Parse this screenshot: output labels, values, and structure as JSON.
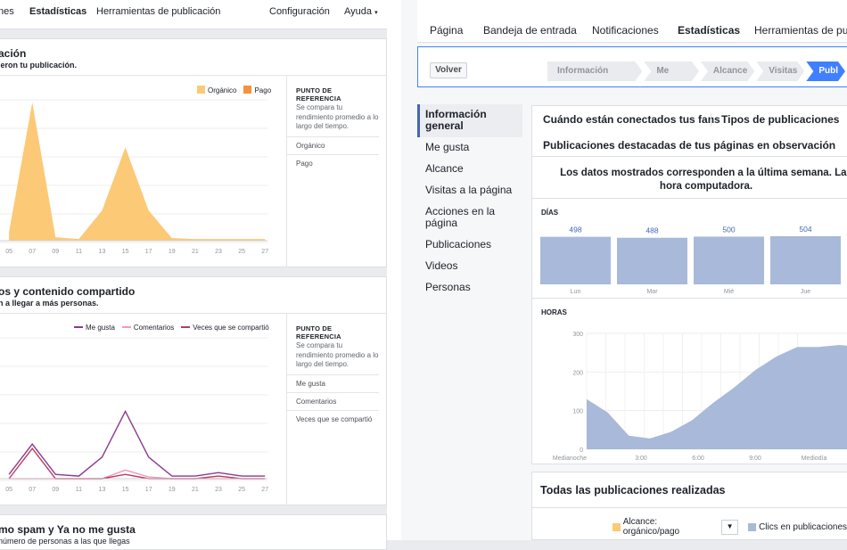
{
  "left_header": {
    "items": [
      "nes",
      "Estadísticas",
      "Herramientas de publicación",
      "Configuración",
      "Ayuda"
    ]
  },
  "card1": {
    "title": "ación",
    "subtitle": "ieron tu publicación.",
    "legend": [
      "Orgánico",
      "Pago"
    ],
    "benchmark": {
      "heading": "PUNTO DE REFERENCIA",
      "text": "Se compara tu rendimiento promedio a lo largo del tiempo.",
      "items": [
        "Orgánico",
        "Pago"
      ]
    }
  },
  "card2": {
    "title": "os y contenido compartido",
    "subtitle": "n a llegar a más personas.",
    "legend": [
      "Me gusta",
      "Comentarios",
      "Veces que se compartió"
    ],
    "benchmark": {
      "heading": "PUNTO DE REFERENCIA",
      "text": "Se compara tu rendimiento promedio a lo largo del tiempo.",
      "items": [
        "Me gusta",
        "Comentarios",
        "Veces que se compartió"
      ]
    }
  },
  "card3": {
    "title": "mo spam y Ya no me gusta",
    "subtitle": "número de personas a las que llegas"
  },
  "right_tabs": [
    "Página",
    "Bandeja de entrada",
    "Notificaciones",
    "Estadísticas",
    "Herramientas de publ"
  ],
  "breadcrumb": {
    "back": "Volver",
    "steps": [
      "Información general",
      "Me gusta",
      "Alcance",
      "Visitas",
      "Publ"
    ]
  },
  "nav": [
    "Información general",
    "Me gusta",
    "Alcance",
    "Visitas a la página",
    "Acciones en la página",
    "Publicaciones",
    "Videos",
    "Personas"
  ],
  "panel": {
    "tabs": [
      "Cuándo están conectados tus fans",
      "Tipos de publicaciones",
      "Publicaciones destacadas de tus páginas en observación"
    ],
    "info": "Los datos mostrados corresponden a la última semana. Las hora computadora.",
    "days_label": "DÍAS",
    "hours_label": "HORAS"
  },
  "all_posts": {
    "title": "Todas las publicaciones realizadas",
    "legend": [
      "Alcance: orgánico/pago",
      "Clics en publicaciones"
    ]
  },
  "colors": {
    "organic": "#fcc977",
    "paid": "#f7923a",
    "likes": "#8b3a8f",
    "comments": "#f39ab5",
    "shares": "#b83b5e",
    "accent": "#4080ff",
    "bar": "#a9b9d9"
  },
  "chart_data": [
    {
      "type": "area",
      "title": "",
      "x": [
        "05",
        "07",
        "09",
        "11",
        "13",
        "15",
        "17",
        "19",
        "21",
        "23",
        "25",
        "27"
      ],
      "series": [
        {
          "name": "Orgánico",
          "values": [
            10,
            160,
            4,
            2,
            35,
            108,
            35,
            3,
            2,
            2,
            2,
            2
          ]
        }
      ]
    },
    {
      "type": "line",
      "title": "",
      "x": [
        "05",
        "07",
        "09",
        "11",
        "13",
        "15",
        "17",
        "19",
        "21",
        "23",
        "25",
        "27"
      ],
      "series": [
        {
          "name": "Me gusta",
          "values": [
            5,
            40,
            5,
            3,
            25,
            78,
            25,
            3,
            3,
            7,
            3,
            3
          ]
        },
        {
          "name": "Comentarios",
          "values": [
            0,
            0,
            0,
            0,
            0,
            10,
            2,
            0,
            0,
            0,
            0,
            0
          ]
        },
        {
          "name": "Veces que se compartió",
          "values": [
            0,
            35,
            0,
            0,
            0,
            5,
            0,
            0,
            0,
            3,
            0,
            0
          ]
        }
      ]
    },
    {
      "type": "bar",
      "title": "",
      "categories": [
        "Lun",
        "Mar",
        "Mié",
        "Jue"
      ],
      "values": [
        498,
        488,
        500,
        504
      ],
      "ylim": [
        0,
        560
      ]
    },
    {
      "type": "area",
      "title": "",
      "ylim": [
        0,
        300
      ],
      "yticks": [
        "300",
        "200",
        "100",
        "0"
      ],
      "xticks": [
        "Medianoche",
        "3:00",
        "6:00",
        "9:00",
        "Mediodía"
      ],
      "x": [
        0,
        1,
        2,
        3,
        4,
        5,
        6,
        7,
        8,
        9,
        10,
        11,
        12,
        13
      ],
      "values": [
        130,
        95,
        35,
        28,
        45,
        75,
        120,
        160,
        205,
        240,
        265,
        265,
        270,
        265
      ]
    }
  ]
}
